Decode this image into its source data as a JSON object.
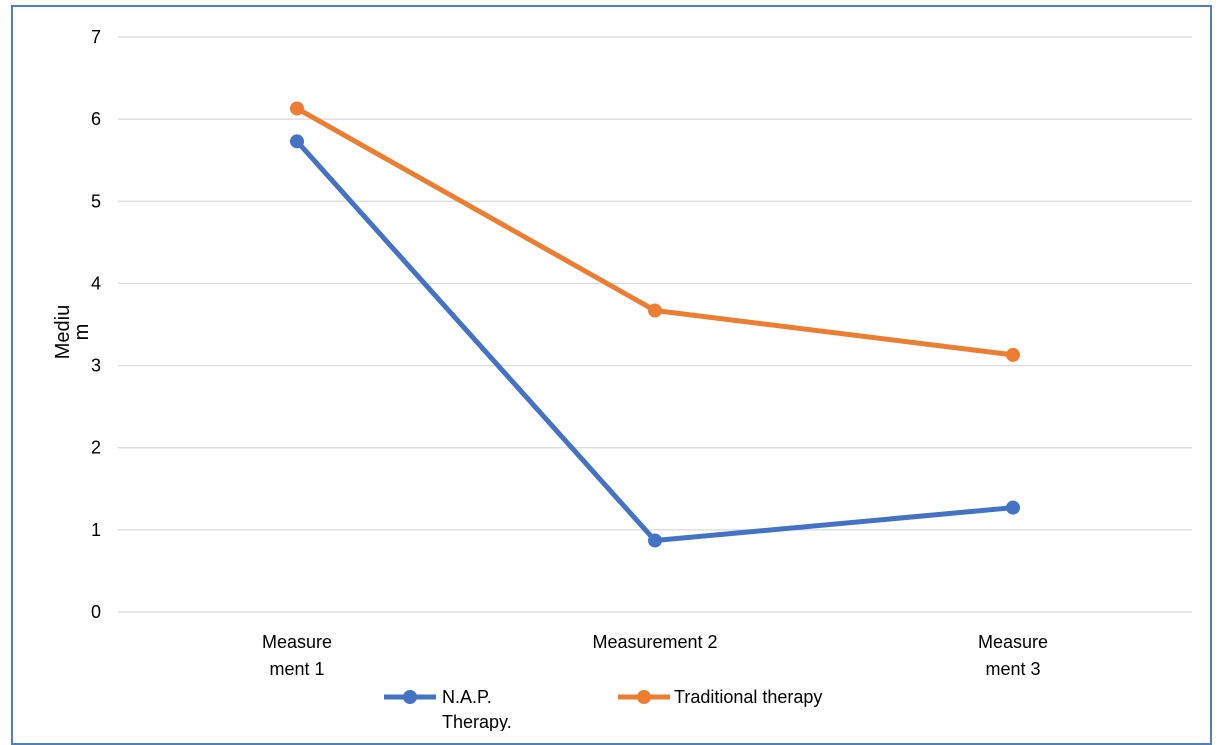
{
  "chart_data": {
    "type": "line",
    "title": "",
    "xlabel": "",
    "ylabel": "Mediu\nm",
    "ylim": [
      0,
      7
    ],
    "yticks": [
      "0",
      "1",
      "2",
      "3",
      "4",
      "5",
      "6",
      "7"
    ],
    "categories": [
      "Measure\nment 1",
      "Measurement 2",
      "Measure\nment 3"
    ],
    "grid": true,
    "legend_position": "bottom",
    "series": [
      {
        "name": "N.A.P.\nTherapy.",
        "color": "#4472c4",
        "values": [
          5.73,
          0.87,
          1.27
        ]
      },
      {
        "name": "Traditional therapy",
        "color": "#ed7d31",
        "values": [
          6.13,
          3.67,
          3.13
        ]
      }
    ]
  }
}
